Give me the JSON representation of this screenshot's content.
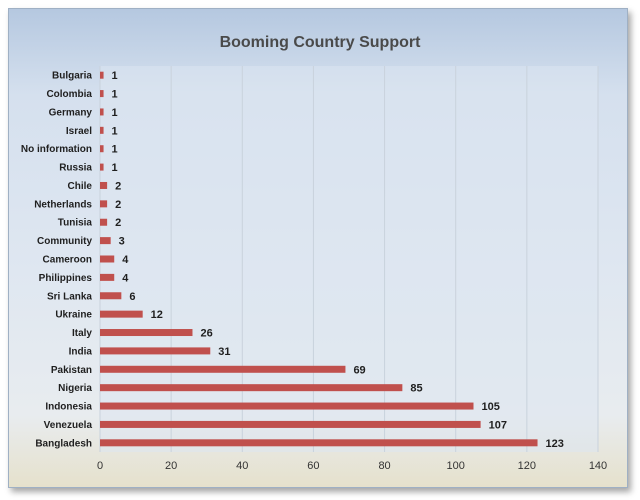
{
  "chart_data": {
    "type": "bar",
    "orientation": "horizontal",
    "title": "Booming Country Support",
    "categories": [
      "Bulgaria",
      "Colombia",
      "Germany",
      "Israel",
      "No information",
      "Russia",
      "Chile",
      "Netherlands",
      "Tunisia",
      "Community",
      "Cameroon",
      "Philippines",
      "Sri Lanka",
      "Ukraine",
      "Italy",
      "India",
      "Pakistan",
      "Nigeria",
      "Indonesia",
      "Venezuela",
      "Bangladesh"
    ],
    "values": [
      1,
      1,
      1,
      1,
      1,
      1,
      2,
      2,
      2,
      3,
      4,
      4,
      6,
      12,
      26,
      31,
      69,
      85,
      105,
      107,
      123
    ],
    "xlim": [
      0,
      140
    ],
    "xticks": [
      0,
      20,
      40,
      60,
      80,
      100,
      120,
      140
    ],
    "grid": true,
    "legend": "none",
    "bar_color": "#c0504d"
  }
}
